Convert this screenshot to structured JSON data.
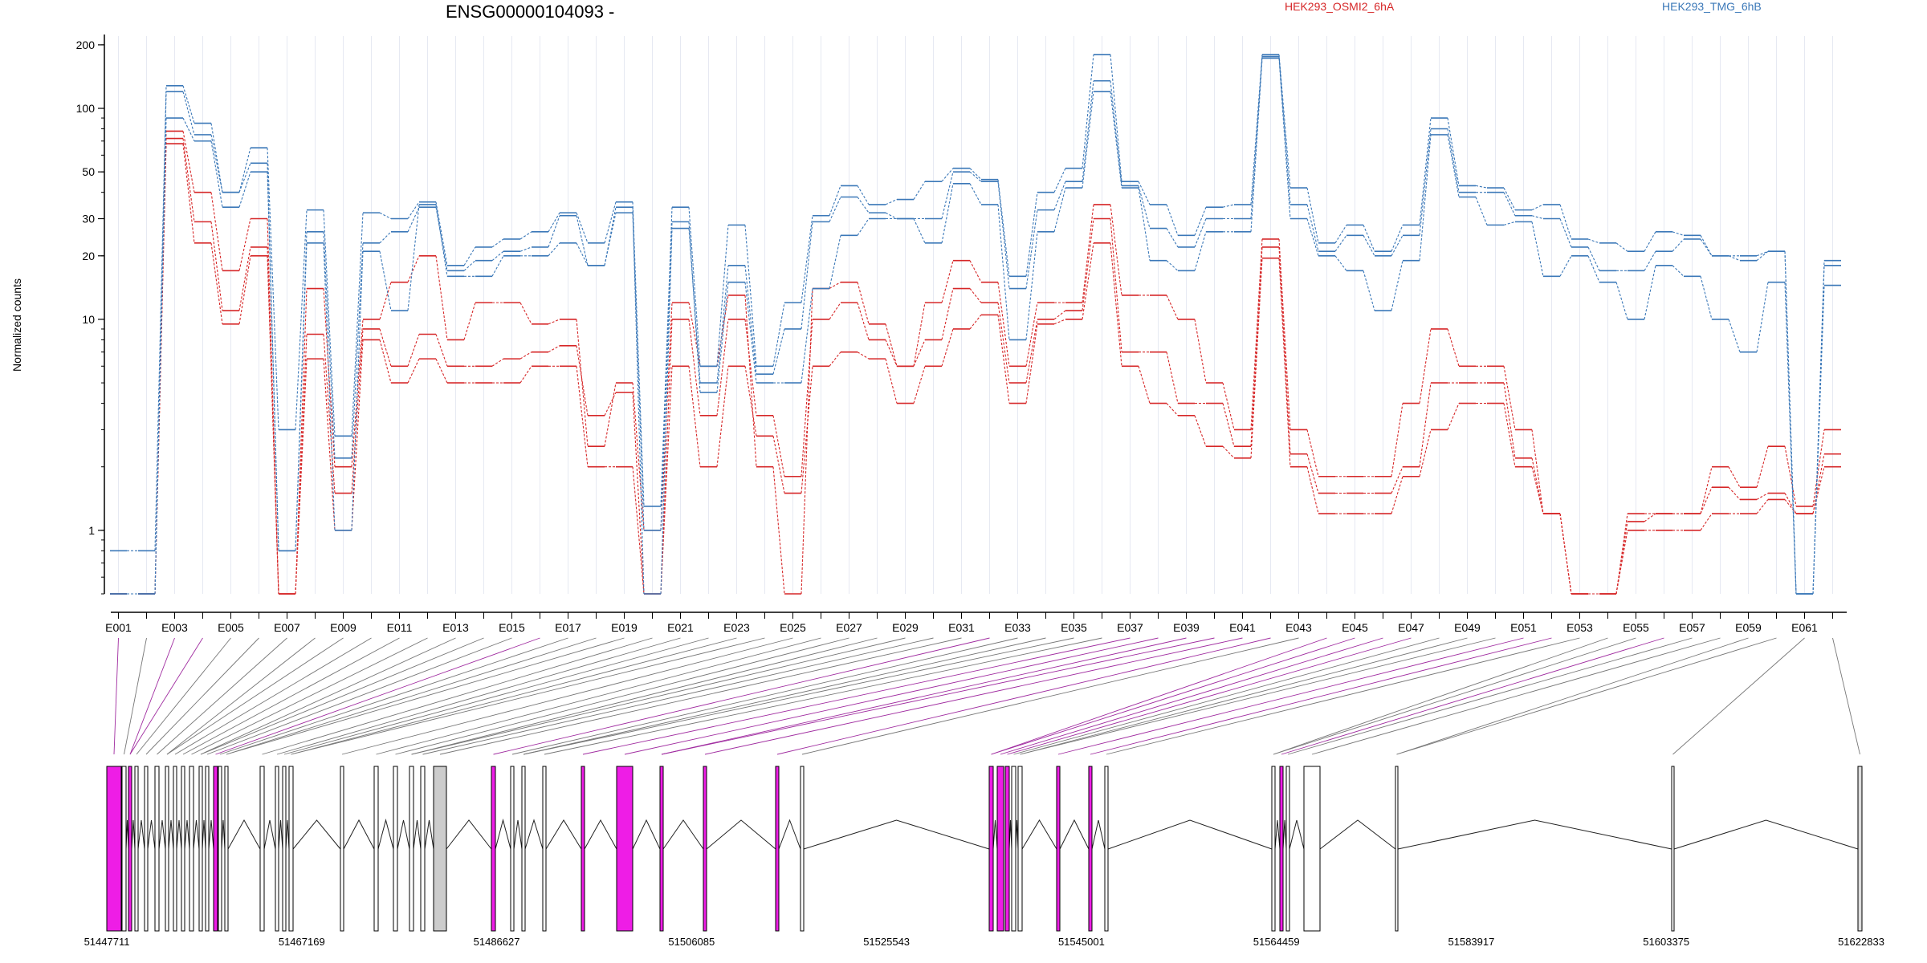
{
  "chart_data": {
    "type": "line",
    "title": "ENSG00000104093 -",
    "ylabel": "Normalized counts",
    "yscale": "log",
    "ylim": [
      0.5,
      220
    ],
    "yticks": [
      "200",
      "100",
      "50",
      "30",
      "20",
      "10",
      "1"
    ],
    "ytick_values": [
      200,
      100,
      50,
      30,
      20,
      10,
      1
    ],
    "legend": [
      {
        "name": "HEK293_OSMI2_6hA",
        "color": "#d62728"
      },
      {
        "name": "HEK293_TMG_6hB",
        "color": "#3b78b8"
      }
    ],
    "x_labels": [
      "E001",
      "E003",
      "E005",
      "E007",
      "E009",
      "E011",
      "E013",
      "E015",
      "E017",
      "E019",
      "E021",
      "E023",
      "E025",
      "E027",
      "E029",
      "E031",
      "E033",
      "E035",
      "E037",
      "E039",
      "E041",
      "E043",
      "E045",
      "E047",
      "E049",
      "E051",
      "E053",
      "E055",
      "E057",
      "E059",
      "E061"
    ],
    "bins": [
      "E001",
      "E002",
      "E003",
      "E004",
      "E005",
      "E006",
      "E007",
      "E008",
      "E009",
      "E010",
      "E011",
      "E012",
      "E013",
      "E014",
      "E015",
      "E016",
      "E017",
      "E018",
      "E019",
      "E020",
      "E021",
      "E022",
      "E023",
      "E024",
      "E025",
      "E026",
      "E027",
      "E028",
      "E029",
      "E030",
      "E031",
      "E032",
      "E033",
      "E034",
      "E035",
      "E036",
      "E037",
      "E038",
      "E039",
      "E040",
      "E041",
      "E042",
      "E043",
      "E044",
      "E045",
      "E046",
      "E047",
      "E048",
      "E049",
      "E050",
      "E051",
      "E052",
      "E053",
      "E054",
      "E055",
      "E056",
      "E057",
      "E058",
      "E059",
      "E060",
      "E061",
      "E062"
    ],
    "series": [
      {
        "name": "HEK293_OSMI2_6hA",
        "color": "#d62728",
        "values": [
          0.5,
          0.5,
          78,
          40,
          17,
          30,
          0.5,
          14,
          2,
          10,
          15,
          20,
          8,
          12,
          12,
          9.5,
          10,
          2.5,
          5,
          1,
          12,
          6,
          13,
          2,
          0.5,
          14,
          15,
          9.5,
          6,
          12,
          19,
          15,
          6,
          12,
          12,
          35,
          13,
          13,
          10,
          5,
          3,
          24,
          3,
          1.8,
          1.8,
          1.8,
          4,
          9,
          6,
          6,
          3,
          1.2,
          0.5,
          0.5,
          1.2,
          1.2,
          1.2,
          2,
          1.6,
          2.5,
          1.3,
          3
        ]
      },
      {
        "name": "HEK293_OSMI2_6hA",
        "color": "#d62728",
        "values": [
          0.5,
          0.5,
          72,
          29,
          11,
          22,
          0.5,
          8.5,
          1.5,
          9,
          6,
          8.5,
          6,
          6,
          6.5,
          7,
          7.5,
          3.5,
          4.5,
          0.5,
          10,
          3.5,
          10,
          3.5,
          1.8,
          10,
          12,
          8,
          6,
          8,
          14,
          12,
          5,
          10,
          11,
          30,
          7,
          7,
          4,
          4,
          2.5,
          22,
          2.3,
          1.5,
          1.5,
          1.5,
          2,
          5,
          5,
          5,
          2.2,
          1.2,
          0.5,
          0.5,
          1.1,
          1.2,
          1.2,
          1.6,
          1.4,
          1.5,
          1.2,
          2.3
        ]
      },
      {
        "name": "HEK293_OSMI2_6hA",
        "color": "#d62728",
        "values": [
          0.5,
          0.5,
          68,
          23,
          9.5,
          20,
          0.5,
          6.5,
          1,
          8,
          5,
          6.5,
          5,
          5,
          5,
          6,
          6,
          2,
          2,
          0.5,
          6,
          2,
          6,
          2.8,
          1.5,
          6,
          7,
          6.5,
          4,
          6,
          9,
          10.5,
          4,
          9.5,
          10,
          23,
          6,
          4,
          3.5,
          2.5,
          2.2,
          19.5,
          2,
          1.2,
          1.2,
          1.2,
          1.8,
          3,
          4,
          4,
          2,
          1.2,
          0.5,
          0.5,
          1,
          1,
          1,
          1.2,
          1.2,
          1.4,
          1.2,
          2
        ]
      },
      {
        "name": "HEK293_TMG_6hB",
        "color": "#3b78b8",
        "values": [
          0.8,
          0.8,
          128,
          85,
          40,
          65,
          3,
          33,
          2.8,
          32,
          30,
          36,
          18,
          22,
          24,
          26,
          32,
          23,
          36,
          1.3,
          34,
          6,
          28,
          6,
          12,
          31,
          43,
          35,
          37,
          45,
          52,
          46,
          16,
          40,
          52,
          180,
          45,
          35,
          25,
          34,
          35,
          180,
          42,
          23,
          28,
          21,
          28,
          90,
          43,
          42,
          33,
          35,
          24,
          23,
          21,
          26,
          25,
          20,
          20,
          21,
          0.5,
          19
        ]
      },
      {
        "name": "HEK293_TMG_6hB",
        "color": "#3b78b8",
        "values": [
          0.5,
          0.5,
          120,
          75,
          40,
          55,
          0.8,
          26,
          2.2,
          23,
          26,
          34,
          17,
          19,
          21,
          22,
          31,
          18,
          34,
          0.5,
          27,
          5,
          18,
          5.5,
          9,
          29,
          38,
          32,
          30,
          30,
          50,
          45,
          14,
          33,
          45,
          135,
          43,
          27,
          22,
          30,
          30,
          176,
          35,
          21,
          25,
          20,
          25,
          80,
          40,
          40,
          31,
          30,
          22,
          17,
          17,
          21,
          24,
          20,
          19,
          21,
          0.5,
          18
        ]
      },
      {
        "name": "HEK293_TMG_6hB",
        "color": "#3b78b8",
        "values": [
          0.5,
          0.5,
          90,
          70,
          34,
          50,
          0.8,
          23,
          1,
          21,
          11,
          35,
          16,
          16,
          20,
          20,
          23,
          18,
          32,
          1,
          29,
          4.5,
          15,
          5,
          5,
          14,
          25,
          30,
          30,
          23,
          44,
          35,
          8,
          26,
          42,
          120,
          42,
          19,
          17,
          26,
          26,
          173,
          30,
          20,
          17,
          11,
          19,
          75,
          38,
          28,
          29,
          16,
          20,
          15,
          10,
          18,
          16,
          10,
          7,
          15,
          0.5,
          14.5
        ]
      }
    ],
    "genomic_ticks": [
      "51447711",
      "51467169",
      "51486627",
      "51506085",
      "51525543",
      "51545001",
      "51564459",
      "51583917",
      "51603375",
      "51622833"
    ]
  }
}
